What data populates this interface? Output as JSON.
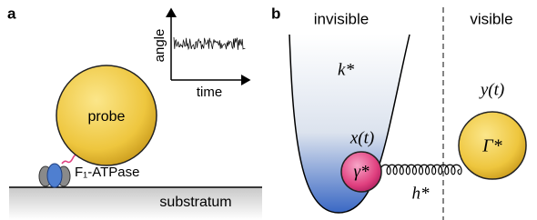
{
  "panels": {
    "a": {
      "label": "a",
      "inset": {
        "y_label": "angle",
        "x_label": "time"
      },
      "probe": "probe",
      "motor": "F₁-ATPase",
      "substrate": "substratum"
    },
    "b": {
      "label": "b",
      "left_region": "invisible",
      "right_region": "visible",
      "trap_stiffness": "k*",
      "hidden_position": "x(t)",
      "hidden_friction": "γ*",
      "coupling": "h*",
      "visible_position": "y(t)",
      "visible_friction": "Γ*"
    }
  }
}
